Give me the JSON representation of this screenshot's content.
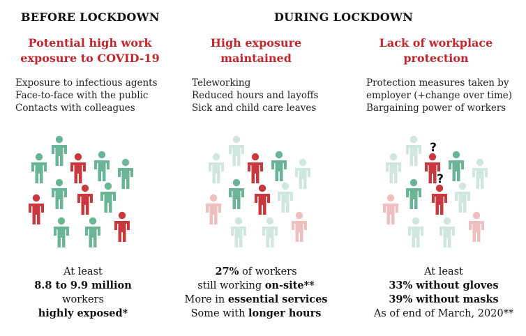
{
  "sections": {
    "before": "BEFORE LOCKDOWN",
    "during": "DURING LOCKDOWN"
  },
  "columns": [
    {
      "title_lines": [
        "Potential high work",
        "exposure to COVID-19"
      ],
      "factors": [
        "Exposure to infectious agents",
        "Face-to-face with the public",
        "Contacts with colleagues"
      ],
      "stats": [
        [
          {
            "t": "At least",
            "b": false
          }
        ],
        [
          {
            "t": "8.8 to 9.9 million",
            "b": true
          }
        ],
        [
          {
            "t": "workers",
            "b": false
          }
        ],
        [
          {
            "t": "highly exposed*",
            "b": true
          }
        ]
      ]
    },
    {
      "title_lines": [
        "High exposure",
        "maintained"
      ],
      "factors": [
        "Teleworking",
        "Reduced hours and layoffs",
        "Sick and child care leaves"
      ],
      "stats": [
        [
          {
            "t": "27%",
            "b": true
          },
          {
            "t": " of workers",
            "b": false
          }
        ],
        [
          {
            "t": "still working ",
            "b": false
          },
          {
            "t": "on-site**",
            "b": true
          }
        ],
        [
          {
            "t": "More in ",
            "b": false
          },
          {
            "t": "essential services",
            "b": true
          }
        ],
        [
          {
            "t": "Some with ",
            "b": false
          },
          {
            "t": "longer hours",
            "b": true
          }
        ]
      ]
    },
    {
      "title_lines": [
        "Lack of workplace",
        "protection"
      ],
      "factors": [
        "Protection measures taken by",
        "employer (+change over time)",
        "Bargaining power of workers"
      ],
      "stats": [
        [
          {
            "t": "At least",
            "b": false
          }
        ],
        [
          {
            "t": "33% without gloves",
            "b": true
          }
        ],
        [
          {
            "t": "39% without masks",
            "b": true
          }
        ],
        [
          {
            "t": "As of end of March, 2020**",
            "b": false
          }
        ]
      ]
    }
  ],
  "question_mark": "?",
  "colors": {
    "green": "#6bb597",
    "red": "#c9383c",
    "green_faded": "#cfe7dc",
    "red_faded": "#efbfc0",
    "title_red": "#c0272d"
  },
  "figures": [
    {
      "group": 0,
      "color": "green"
    },
    {
      "group": 0,
      "color": "green"
    },
    {
      "group": 0,
      "color": "red"
    },
    {
      "group": 0,
      "color": "green"
    },
    {
      "group": 0,
      "color": "green"
    },
    {
      "group": 0,
      "color": "red"
    },
    {
      "group": 0,
      "color": "green"
    },
    {
      "group": 0,
      "color": "red"
    },
    {
      "group": 0,
      "color": "green"
    },
    {
      "group": 0,
      "color": "green"
    },
    {
      "group": 0,
      "color": "green"
    },
    {
      "group": 0,
      "color": "red"
    },
    {
      "group": 1,
      "color": "green_faded"
    },
    {
      "group": 1,
      "color": "green_faded"
    },
    {
      "group": 1,
      "color": "red"
    },
    {
      "group": 1,
      "color": "green"
    },
    {
      "group": 1,
      "color": "green_faded"
    },
    {
      "group": 1,
      "color": "red_faded"
    },
    {
      "group": 1,
      "color": "green"
    },
    {
      "group": 1,
      "color": "red"
    },
    {
      "group": 1,
      "color": "green_faded"
    },
    {
      "group": 1,
      "color": "green_faded"
    },
    {
      "group": 1,
      "color": "green_faded"
    },
    {
      "group": 1,
      "color": "red_faded"
    },
    {
      "group": 2,
      "color": "green_faded"
    },
    {
      "group": 2,
      "color": "green_faded"
    },
    {
      "group": 2,
      "color": "red",
      "question": true
    },
    {
      "group": 2,
      "color": "green"
    },
    {
      "group": 2,
      "color": "green_faded"
    },
    {
      "group": 2,
      "color": "red_faded"
    },
    {
      "group": 2,
      "color": "green"
    },
    {
      "group": 2,
      "color": "red",
      "question": true
    },
    {
      "group": 2,
      "color": "green_faded"
    },
    {
      "group": 2,
      "color": "green_faded"
    },
    {
      "group": 2,
      "color": "green_faded"
    },
    {
      "group": 2,
      "color": "red_faded"
    }
  ]
}
